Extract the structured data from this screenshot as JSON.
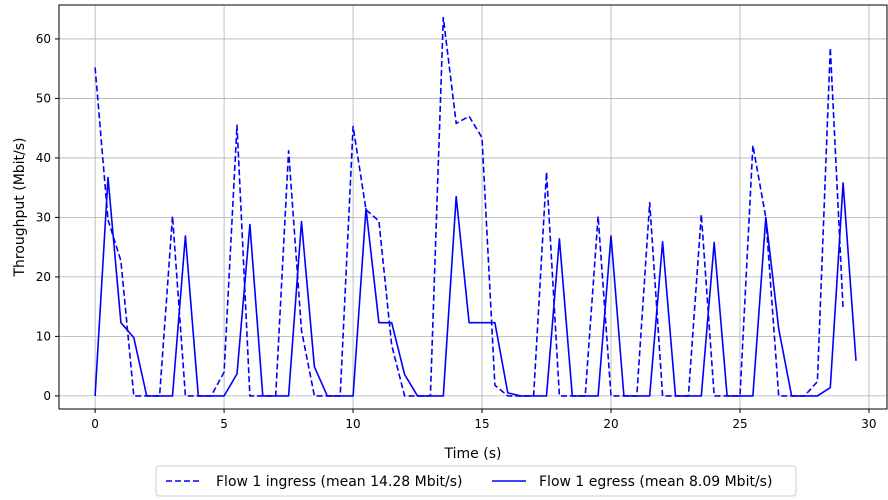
{
  "chart_data": {
    "type": "line",
    "xlabel": "Time (s)",
    "ylabel": "Throughput (Mbit/s)",
    "xlim": [
      -1.4,
      30.7
    ],
    "ylim": [
      -2.2,
      65.7
    ],
    "xticks": [
      0,
      5,
      10,
      15,
      20,
      25,
      30
    ],
    "yticks": [
      0,
      10,
      20,
      30,
      40,
      50,
      60
    ],
    "grid": true,
    "legend_position": "bottom-center",
    "series": [
      {
        "name": "Flow 1 ingress (mean 14.28 Mbit/s)",
        "style": "dashed",
        "color": "#0000ff",
        "x": [
          0,
          0.5,
          1.0,
          1.5,
          2.0,
          2.5,
          3.0,
          3.5,
          4.0,
          4.5,
          5.0,
          5.5,
          6.0,
          6.5,
          7.0,
          7.5,
          8.0,
          8.5,
          9.0,
          9.5,
          10.0,
          10.5,
          11.0,
          11.5,
          12.0,
          12.5,
          13.0,
          13.5,
          14.0,
          14.5,
          15.0,
          15.5,
          16.0,
          16.5,
          17.0,
          17.5,
          18.0,
          18.5,
          19.0,
          19.5,
          20.0,
          20.5,
          21.0,
          21.5,
          22.0,
          22.5,
          23.0,
          23.5,
          24.0,
          24.5,
          25.0,
          25.5,
          26.0,
          26.5,
          27.0,
          27.5,
          28.0,
          28.5,
          29.0
        ],
        "y": [
          55.2,
          29.6,
          22.7,
          0,
          0,
          0,
          30.2,
          0,
          0,
          0,
          4.0,
          45.5,
          0,
          0,
          0,
          41.2,
          11.0,
          0,
          0,
          0,
          45.3,
          31.3,
          29.4,
          8.5,
          0,
          0,
          0,
          63.6,
          45.8,
          47.0,
          43.4,
          1.8,
          0,
          0,
          0,
          37.6,
          0,
          0,
          0,
          30.2,
          0,
          0,
          0,
          32.5,
          0,
          0,
          0,
          30.5,
          0,
          0,
          0,
          42.1,
          30.0,
          0,
          0,
          0,
          2.4,
          58.5,
          14.6
        ]
      },
      {
        "name": "Flow 1 egress (mean 8.09 Mbit/s)",
        "style": "solid",
        "color": "#0000ff",
        "x": [
          0,
          0.5,
          1.0,
          1.5,
          2.0,
          2.5,
          3.0,
          3.5,
          4.0,
          4.5,
          5.0,
          5.5,
          6.0,
          6.5,
          7.0,
          7.5,
          8.0,
          8.5,
          9.0,
          9.5,
          10.0,
          10.5,
          11.0,
          11.5,
          12.0,
          12.5,
          13.0,
          13.5,
          14.0,
          14.5,
          15.0,
          15.5,
          16.0,
          16.5,
          17.0,
          17.5,
          18.0,
          18.5,
          19.0,
          19.5,
          20.0,
          20.5,
          21.0,
          21.5,
          22.0,
          22.5,
          23.0,
          23.5,
          24.0,
          24.5,
          25.0,
          25.5,
          26.0,
          26.5,
          27.0,
          27.5,
          28.0,
          28.5,
          29.0,
          29.5
        ],
        "y": [
          0,
          36.7,
          12.3,
          9.8,
          0,
          0,
          0,
          26.9,
          0,
          0,
          0,
          3.7,
          28.8,
          0,
          0,
          0,
          29.3,
          4.9,
          0,
          0,
          0,
          31.5,
          12.3,
          12.3,
          3.6,
          0,
          0,
          0,
          33.5,
          12.3,
          12.3,
          12.3,
          0.5,
          0,
          0,
          0,
          26.4,
          0,
          0,
          0,
          26.9,
          0,
          0,
          0,
          25.9,
          0,
          0,
          0,
          25.8,
          0,
          0,
          0,
          30.0,
          11.3,
          0,
          0,
          0,
          1.4,
          35.8,
          5.9
        ]
      }
    ]
  }
}
